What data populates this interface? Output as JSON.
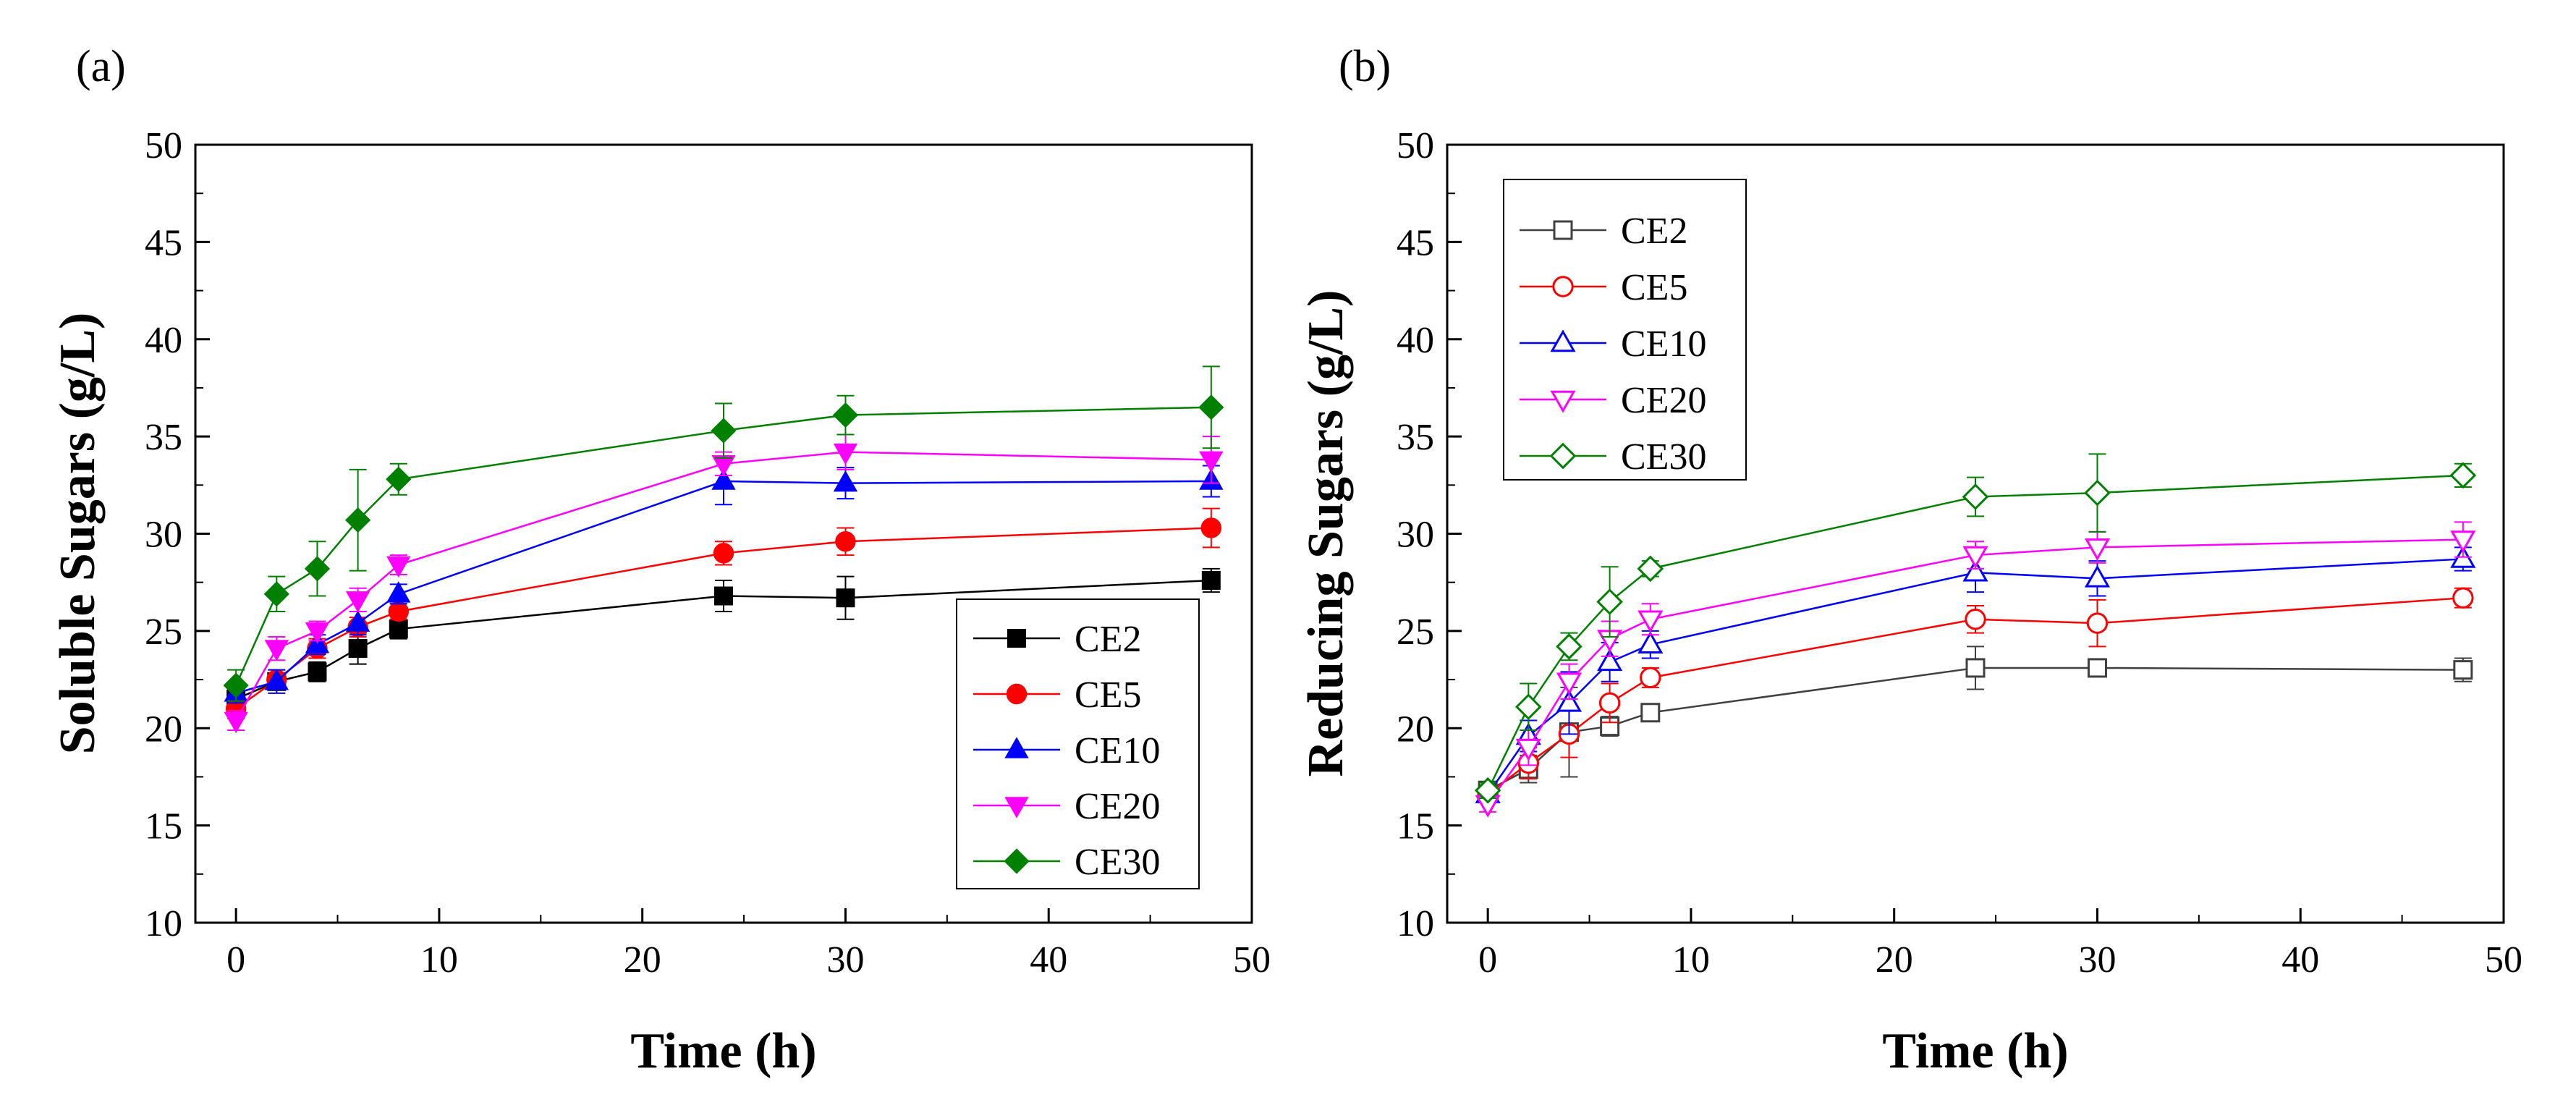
{
  "chart_data": [
    {
      "panel": "(a)",
      "type": "line",
      "marker_fill": "filled",
      "title": "",
      "xlabel": "Time (h)",
      "ylabel": "Soluble Sugars (g/L)",
      "xlim": [
        -2,
        50
      ],
      "ylim": [
        10,
        50
      ],
      "xticks": [
        0,
        10,
        20,
        30,
        40,
        50
      ],
      "yticks": [
        10,
        15,
        20,
        25,
        30,
        35,
        40,
        45,
        50
      ],
      "legend_position": "bottom-right",
      "grid": false,
      "x": [
        0,
        2,
        4,
        6,
        8,
        24,
        30,
        48
      ],
      "series": [
        {
          "name": "CE2",
          "color": "#000000",
          "marker": "square",
          "values": [
            21.5,
            22.4,
            22.9,
            24.1,
            25.1,
            26.8,
            26.7,
            27.6
          ],
          "errors": [
            0.5,
            0.4,
            0.5,
            0.8,
            0.5,
            0.8,
            1.1,
            0.6
          ]
        },
        {
          "name": "CE5",
          "color": "#ff0000",
          "marker": "circle",
          "values": [
            21.0,
            22.5,
            24.1,
            25.2,
            26.0,
            29.0,
            29.6,
            30.3
          ],
          "errors": [
            0.5,
            0.5,
            0.5,
            0.5,
            0.4,
            0.6,
            0.7,
            1.0
          ]
        },
        {
          "name": "CE10",
          "color": "#0000ff",
          "marker": "triangle-up",
          "values": [
            21.8,
            22.4,
            24.3,
            25.4,
            26.9,
            32.7,
            32.6,
            32.7
          ],
          "errors": [
            0.5,
            0.6,
            0.5,
            0.6,
            0.5,
            1.2,
            0.8,
            0.8
          ]
        },
        {
          "name": "CE20",
          "color": "#ff00ff",
          "marker": "triangle-down",
          "values": [
            20.4,
            24.1,
            25.0,
            26.6,
            28.4,
            33.6,
            34.2,
            33.8
          ],
          "errors": [
            0.5,
            0.6,
            0.5,
            0.6,
            0.5,
            0.6,
            0.9,
            1.2
          ]
        },
        {
          "name": "CE30",
          "color": "#008000",
          "marker": "diamond",
          "values": [
            22.2,
            26.9,
            28.2,
            30.7,
            32.8,
            35.3,
            36.1,
            36.5
          ],
          "errors": [
            0.8,
            0.9,
            1.4,
            2.6,
            0.8,
            1.4,
            1.0,
            2.1
          ]
        }
      ]
    },
    {
      "panel": "(b)",
      "type": "line",
      "marker_fill": "open",
      "title": "",
      "xlabel": "Time (h)",
      "ylabel": "Reducing Sugars (g/L)",
      "xlim": [
        -2,
        50
      ],
      "ylim": [
        10,
        50
      ],
      "xticks": [
        0,
        10,
        20,
        30,
        40,
        50
      ],
      "yticks": [
        10,
        15,
        20,
        25,
        30,
        35,
        40,
        45,
        50
      ],
      "legend_position": "top-left",
      "grid": false,
      "x": [
        0,
        2,
        4,
        6,
        8,
        24,
        30,
        48
      ],
      "series": [
        {
          "name": "CE2",
          "color": "#404040",
          "marker": "square",
          "values": [
            16.8,
            17.9,
            19.8,
            20.1,
            20.8,
            23.1,
            23.1,
            23.0
          ],
          "errors": [
            0.4,
            0.7,
            2.3,
            0.5,
            0.4,
            1.1,
            0.4,
            0.6
          ]
        },
        {
          "name": "CE5",
          "color": "#ff0000",
          "marker": "circle",
          "values": [
            16.6,
            18.2,
            19.7,
            21.3,
            22.6,
            25.6,
            25.4,
            26.7
          ],
          "errors": [
            0.4,
            0.8,
            1.2,
            1.0,
            0.5,
            0.7,
            1.2,
            0.5
          ]
        },
        {
          "name": "CE10",
          "color": "#0000ff",
          "marker": "triangle-up",
          "values": [
            16.6,
            19.6,
            21.3,
            23.4,
            24.3,
            28.0,
            27.7,
            28.7
          ],
          "errors": [
            0.4,
            0.8,
            1.6,
            1.0,
            0.7,
            1.0,
            0.9,
            0.6
          ]
        },
        {
          "name": "CE20",
          "color": "#ff00ff",
          "marker": "triangle-down",
          "values": [
            16.1,
            19.0,
            22.4,
            24.6,
            25.6,
            28.9,
            29.3,
            29.7
          ],
          "errors": [
            0.4,
            0.9,
            0.9,
            0.9,
            0.8,
            0.7,
            0.8,
            0.9
          ]
        },
        {
          "name": "CE30",
          "color": "#008000",
          "marker": "diamond",
          "values": [
            16.8,
            21.1,
            24.2,
            26.5,
            28.2,
            31.9,
            32.1,
            33.0
          ],
          "errors": [
            0.4,
            1.2,
            0.7,
            1.8,
            0.4,
            1.0,
            2.0,
            0.6
          ]
        }
      ]
    }
  ]
}
